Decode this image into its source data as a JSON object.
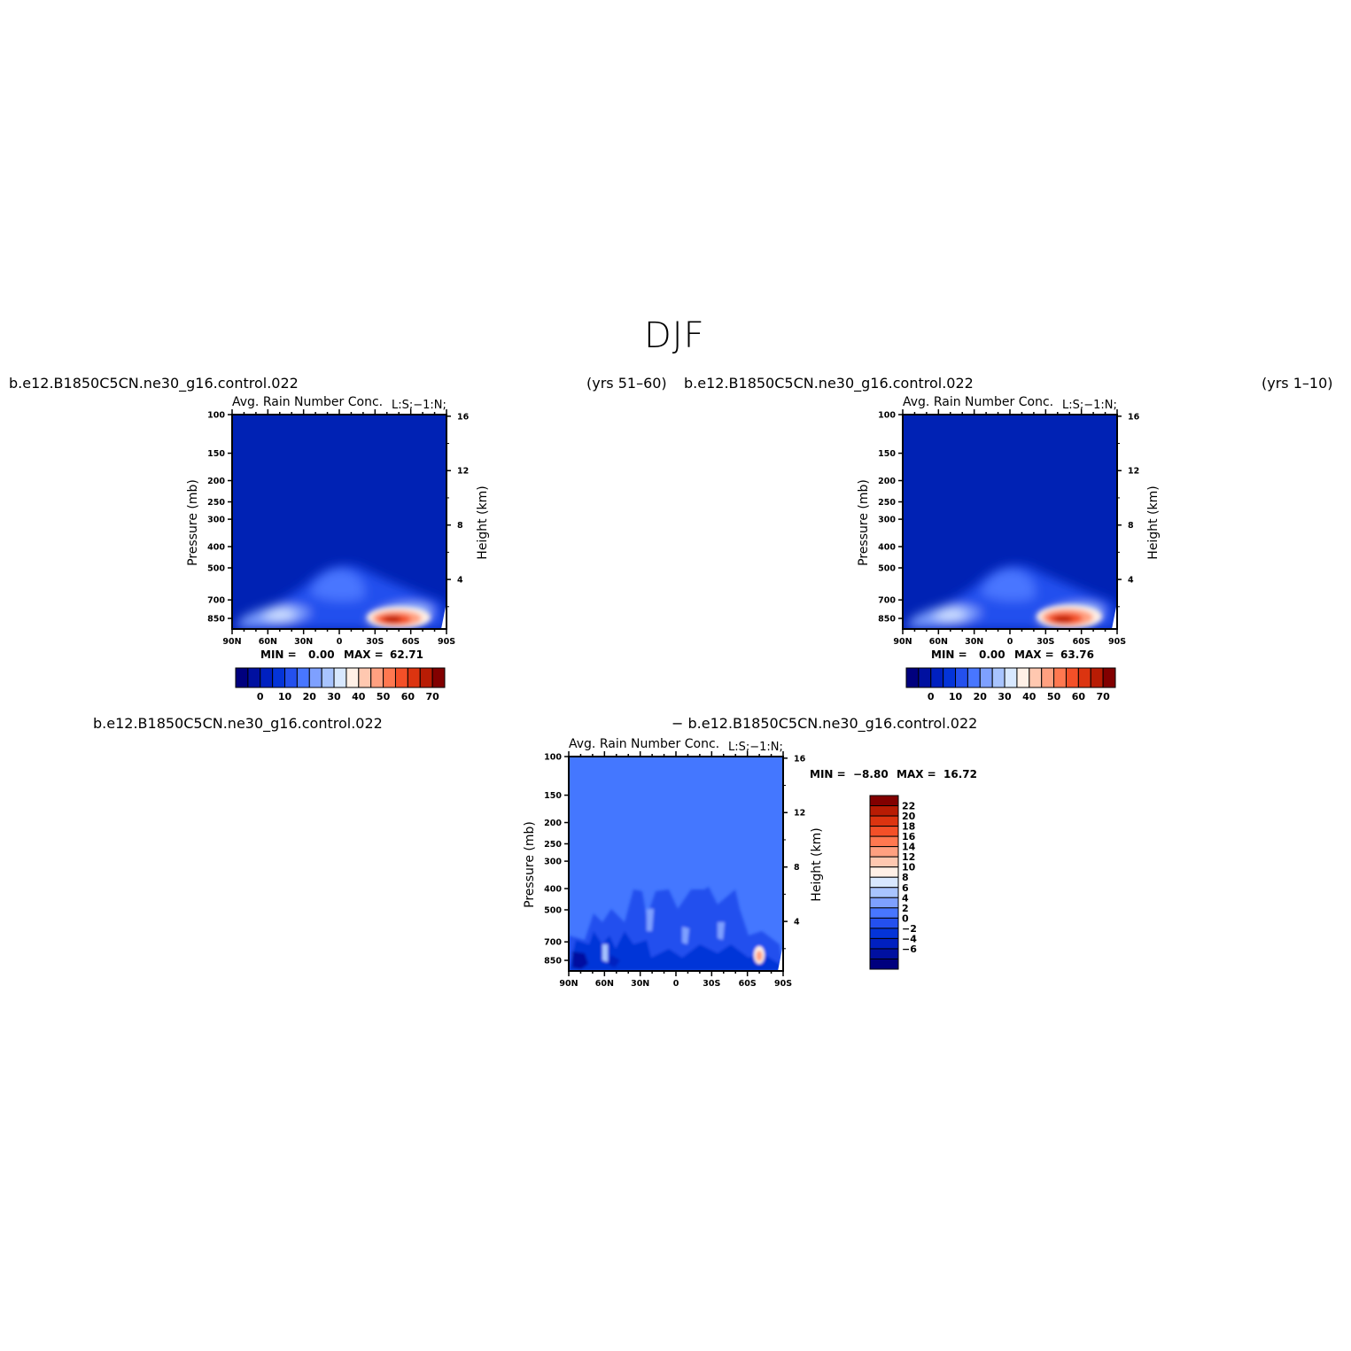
{
  "figure": {
    "title": "DJF"
  },
  "colors": {
    "background_blue": "#0022b4",
    "diff_background": "#4477ff",
    "scale_main": [
      "#00007e",
      "#0010a0",
      "#0020c0",
      "#0434d8",
      "#2450ee",
      "#4876ff",
      "#7ea0ff",
      "#a8c4ff",
      "#d8e8ff",
      "#fff0e6",
      "#ffc8b0",
      "#ffa080",
      "#ff7850",
      "#f45028",
      "#dc3410",
      "#b81c04",
      "#820000"
    ],
    "scale_diff": [
      "#00007e",
      "#0010a0",
      "#0020c0",
      "#0434d8",
      "#2450ee",
      "#4876ff",
      "#7ea0ff",
      "#a8c4ff",
      "#d8e8ff",
      "#fff0e6",
      "#ffc8b0",
      "#ffa080",
      "#ff7850",
      "#f45028",
      "#dc3410",
      "#b81c04",
      "#820000"
    ]
  },
  "chart_data": [
    {
      "type": "heatmap",
      "case": "b.e12.B1850C5CN.ne30_g16.control.022",
      "years": "(yrs 51–60)",
      "variable": "Avg. Rain Number Conc.",
      "units_label": "L:S;−1:N;",
      "min_label": "MIN =",
      "min_value": "0.00",
      "max_label": "MAX =",
      "max_value": "62.71",
      "ylabel": "Pressure (mb)",
      "y2label": "Height (km)",
      "xticks": [
        "90N",
        "60N",
        "30N",
        "0",
        "30S",
        "60S",
        "90S"
      ],
      "yticks": [
        "100",
        "150",
        "200",
        "250",
        "300",
        "400",
        "500",
        "700",
        "850"
      ],
      "y2ticks": [
        "16",
        "12",
        "8",
        "4"
      ],
      "colorbar_ticks": [
        "0",
        "10",
        "20",
        "30",
        "40",
        "50",
        "60",
        "70"
      ],
      "peak_value": 62.71,
      "range": [
        0,
        70
      ]
    },
    {
      "type": "heatmap",
      "case": "b.e12.B1850C5CN.ne30_g16.control.022",
      "years": "(yrs 1–10)",
      "variable": "Avg. Rain Number Conc.",
      "units_label": "L:S;−1:N;",
      "min_label": "MIN =",
      "min_value": "0.00",
      "max_label": "MAX =",
      "max_value": "63.76",
      "ylabel": "Pressure (mb)",
      "y2label": "Height (km)",
      "xticks": [
        "90N",
        "60N",
        "30N",
        "0",
        "30S",
        "60S",
        "90S"
      ],
      "yticks": [
        "100",
        "150",
        "200",
        "250",
        "300",
        "400",
        "500",
        "700",
        "850"
      ],
      "y2ticks": [
        "16",
        "12",
        "8",
        "4"
      ],
      "colorbar_ticks": [
        "0",
        "10",
        "20",
        "30",
        "40",
        "50",
        "60",
        "70"
      ],
      "peak_value": 63.76,
      "range": [
        0,
        70
      ]
    },
    {
      "type": "heatmap",
      "case": "b.e12.B1850C5CN.ne30_g16.control.022",
      "case_diff": "− b.e12.B1850C5CN.ne30_g16.control.022",
      "variable": "Avg. Rain Number Conc.",
      "units_label": "L:S;−1:N;",
      "min_label": "MIN =",
      "min_value": "−8.80",
      "max_label": "MAX =",
      "max_value": "16.72",
      "ylabel": "Pressure (mb)",
      "y2label": "Height (km)",
      "xticks": [
        "90N",
        "60N",
        "30N",
        "0",
        "30S",
        "60S",
        "90S"
      ],
      "yticks": [
        "100",
        "150",
        "200",
        "250",
        "300",
        "400",
        "500",
        "700",
        "850"
      ],
      "y2ticks": [
        "16",
        "12",
        "8",
        "4"
      ],
      "colorbar_ticks": [
        "22",
        "20",
        "18",
        "16",
        "14",
        "12",
        "10",
        "8",
        "6",
        "4",
        "2",
        "0",
        "−2",
        "−4",
        "−6"
      ],
      "range": [
        -8,
        24
      ]
    }
  ]
}
